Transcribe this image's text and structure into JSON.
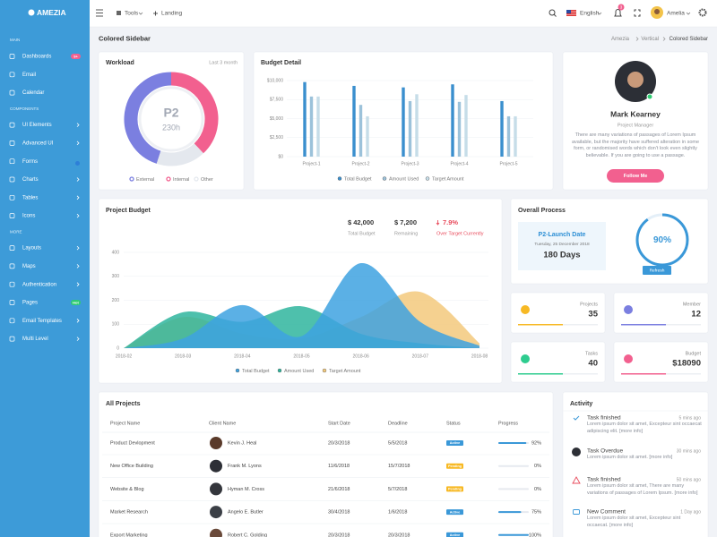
{
  "sidebar": {
    "brand": "AMEZIA",
    "sections": [
      {
        "label": "MAIN",
        "items": [
          {
            "label": "Dashboards",
            "badge": "9+"
          },
          {
            "label": "Email"
          },
          {
            "label": "Calendar"
          }
        ]
      },
      {
        "label": "COMPONENTS",
        "items": [
          {
            "label": "UI Elements",
            "submenu": true
          },
          {
            "label": "Advanced UI",
            "submenu": true
          },
          {
            "label": "Forms"
          },
          {
            "label": "Charts",
            "submenu": true
          },
          {
            "label": "Tables",
            "submenu": true
          },
          {
            "label": "Icons",
            "submenu": true
          }
        ]
      },
      {
        "label": "MORE",
        "items": [
          {
            "label": "Layouts",
            "submenu": true
          },
          {
            "label": "Maps",
            "submenu": true
          },
          {
            "label": "Authentication",
            "submenu": true
          },
          {
            "label": "Pages",
            "badge": "Hot"
          },
          {
            "label": "Email Templates",
            "submenu": true
          },
          {
            "label": "Multi Level",
            "submenu": true
          }
        ]
      }
    ]
  },
  "topbar": {
    "menus": [
      "Tools",
      "Landing"
    ],
    "language": "English",
    "notifications": "3",
    "user": "Amelia"
  },
  "breadcrumb": {
    "title": "Colored Sidebar",
    "path": [
      "Amezia",
      "Vertical",
      "Colored Sidebar"
    ]
  },
  "workload": {
    "type": "donut",
    "title": "Workload",
    "subtitle": "Last 3 month",
    "center_title": "P2",
    "center_value": "230h",
    "series": [
      {
        "name": "External",
        "color": "#7b7fe0",
        "value": 45
      },
      {
        "name": "Internal",
        "color": "#f2608f",
        "value": 38
      },
      {
        "name": "Other",
        "color": "#e4e8ee",
        "value": 17
      }
    ]
  },
  "budget_detail": {
    "type": "bar",
    "title": "Budget Detail",
    "categories": [
      "Project-1",
      "Project-2",
      "Project-3",
      "Project-4",
      "Project-5"
    ],
    "series": [
      {
        "name": "Total Budget",
        "color": "#3a8fce",
        "values": [
          9800,
          9300,
          9100,
          9500,
          7300
        ]
      },
      {
        "name": "Amount Used",
        "color": "#9cc2da",
        "values": [
          7900,
          6800,
          7300,
          7200,
          5300
        ]
      },
      {
        "name": "Target Amount",
        "color": "#c6dde8",
        "values": [
          7900,
          5300,
          8200,
          8100,
          5300
        ]
      }
    ],
    "ylim": [
      0,
      10000
    ],
    "yticks": [
      {
        "value": 0,
        "label": "$0"
      },
      {
        "value": 2500,
        "label": "$2,500"
      },
      {
        "value": 5000,
        "label": "$5,000"
      },
      {
        "value": 7500,
        "label": "$7,500"
      },
      {
        "value": 10000,
        "label": "$10,000"
      }
    ],
    "grid": true
  },
  "profile": {
    "name": "Mark Kearney",
    "role": "Project Manager",
    "text": "There are many variations of passages of Lorem Ipsum available, but the majority have suffered alteration in some form, or randomised words which don't look even slightly believable. If you are going to use a passage.",
    "button": "Follow Me"
  },
  "project_budget": {
    "type": "area",
    "title": "Project Budget",
    "stats": [
      {
        "value": "$ 42,000",
        "label": "Total Budget"
      },
      {
        "value": "$ 7,200",
        "label": "Remaining"
      },
      {
        "value": "7.9%",
        "label": "Over Target Currently"
      }
    ],
    "categories": [
      "2018-02",
      "2018-03",
      "2018-04",
      "2018-05",
      "2018-06",
      "2018-07",
      "2018-08"
    ],
    "series": [
      {
        "name": "Total Budget",
        "color": "#3ea2e0",
        "values": [
          0,
          40,
          180,
          50,
          355,
          110,
          10
        ]
      },
      {
        "name": "Amount Used",
        "color": "#2fb59d",
        "values": [
          0,
          150,
          110,
          175,
          60,
          20,
          0
        ]
      },
      {
        "name": "Target Amount",
        "color": "#f3c97c",
        "values": [
          0,
          130,
          60,
          40,
          130,
          235,
          20
        ]
      }
    ],
    "ylim": [
      0,
      400
    ],
    "yticks": [
      0,
      100,
      200,
      300,
      400
    ],
    "grid": true
  },
  "overall_process": {
    "title": "Overall Process",
    "launch_title": "P2-Launch Date",
    "launch_date": "Tuesday, 25 December 2018",
    "days": "180 Days",
    "gauge": {
      "value": 90,
      "value_label": "90%"
    },
    "button": "Refresh"
  },
  "stats": [
    {
      "label": "Projects",
      "value": "35",
      "color": "#f7b924"
    },
    {
      "label": "Member",
      "value": "12",
      "color": "#7b7fe0"
    },
    {
      "label": "Tasks",
      "value": "40",
      "color": "#2ecc8f"
    },
    {
      "label": "Budget",
      "value": "$18090",
      "color": "#f2608f"
    }
  ],
  "projects": {
    "title": "All Projects",
    "columns": [
      "Project Name",
      "Client Name",
      "Start Date",
      "Deadline",
      "Status",
      "Progress"
    ],
    "rows": [
      {
        "project": "Product Devlopment",
        "client": "Kevin J. Heal",
        "start": "20/3/2018",
        "deadline": "5/5/2018",
        "status": "Active",
        "progress": {
          "value": 92,
          "label": "92%"
        }
      },
      {
        "project": "New Office Building",
        "client": "Frank M. Lyons",
        "start": "11/6/2018",
        "deadline": "15/7/2018",
        "status": "Pending",
        "progress": {
          "value": 0,
          "label": "0%"
        }
      },
      {
        "project": "Website & Blog",
        "client": "Hyman M. Cross",
        "start": "21/6/2018",
        "deadline": "5/7/2018",
        "status": "Pending",
        "progress": {
          "value": 0,
          "label": "0%"
        }
      },
      {
        "project": "Market Research",
        "client": "Angelo E. Butler",
        "start": "30/4/2018",
        "deadline": "1/6/2018",
        "status": "Active",
        "progress": {
          "value": 75,
          "label": "75%"
        }
      },
      {
        "project": "Export Marketing",
        "client": "Robert C. Golding",
        "start": "20/3/2018",
        "deadline": "20/3/2018",
        "status": "Active",
        "progress": {
          "value": 100,
          "label": "100%"
        }
      }
    ]
  },
  "activity": {
    "title": "Activity",
    "items": [
      {
        "title": "Task finished",
        "text": "Lorem ipsum dolor sit amet, Excepteur sint occaecat adipiscing elit. [more info]",
        "time": "5 mins ago"
      },
      {
        "title": "Task Overdue",
        "text": "Lorem ipsum dolor sit amet. [more info]",
        "time": "30 mins ago"
      },
      {
        "title": "Task finished",
        "text": "Lorem ipsum dolor sit amet, There are many variations of passages of Lorem Ipsum. [more info]",
        "time": "50 mins ago"
      },
      {
        "title": "New Comment",
        "text": "Lorem ipsum dolor sit amet, Excepteur sint occaecat. [more info]",
        "time": "1 Day ago"
      }
    ]
  }
}
